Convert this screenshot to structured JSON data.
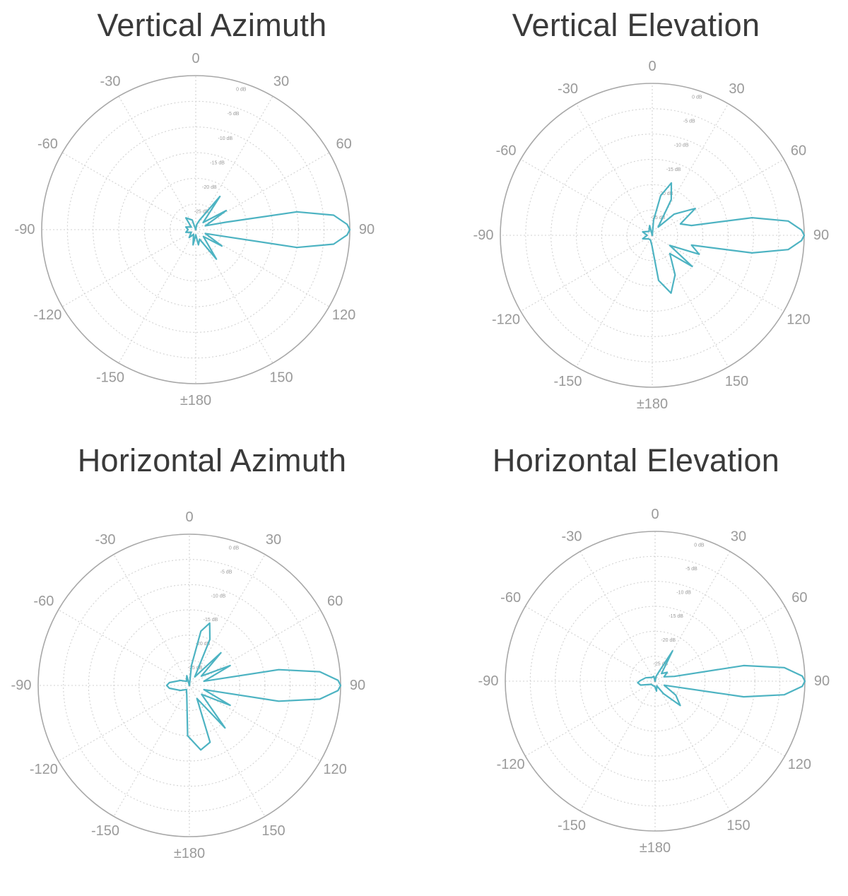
{
  "colors": {
    "pattern": "#4db3c2",
    "grid": "#d2d2d2",
    "outer_ring": "#a8a8a8",
    "label": "#9a9a9a",
    "title": "#3a3a3a"
  },
  "angle_labels": [
    "0",
    "30",
    "60",
    "90",
    "120",
    "150",
    "±180",
    "-150",
    "-120",
    "-90",
    "-60",
    "-30"
  ],
  "ring_labels": [
    "0 dB",
    "-5 dB",
    "-10 dB",
    "-15 dB",
    "-20 dB",
    "-25 dB"
  ],
  "chart_data": [
    {
      "type": "polar",
      "title": "Vertical Azimuth",
      "radial_range_db": [
        -30,
        0
      ],
      "angle_ticks_deg": [
        0,
        30,
        60,
        90,
        120,
        150,
        180,
        -150,
        -120,
        -90,
        -60,
        -30
      ],
      "grid": true,
      "points": [
        {
          "angle": 0,
          "db": -30
        },
        {
          "angle": 10,
          "db": -29
        },
        {
          "angle": 22,
          "db": -28
        },
        {
          "angle": 36,
          "db": -22
        },
        {
          "angle": 46,
          "db": -28
        },
        {
          "angle": 58,
          "db": -23
        },
        {
          "angle": 68,
          "db": -28
        },
        {
          "angle": 76,
          "db": -24
        },
        {
          "angle": 80,
          "db": -10
        },
        {
          "angle": 84,
          "db": -3
        },
        {
          "angle": 88,
          "db": -0.5
        },
        {
          "angle": 90,
          "db": 0
        },
        {
          "angle": 92,
          "db": -0.5
        },
        {
          "angle": 96,
          "db": -3
        },
        {
          "angle": 100,
          "db": -10
        },
        {
          "angle": 104,
          "db": -25
        },
        {
          "angle": 112,
          "db": -28
        },
        {
          "angle": 122,
          "db": -24
        },
        {
          "angle": 132,
          "db": -28
        },
        {
          "angle": 145,
          "db": -23
        },
        {
          "angle": 158,
          "db": -28
        },
        {
          "angle": 170,
          "db": -27
        },
        {
          "angle": 180,
          "db": -29
        },
        {
          "angle": 190,
          "db": -27
        },
        {
          "angle": 205,
          "db": -29
        },
        {
          "angle": 220,
          "db": -28
        },
        {
          "angle": 240,
          "db": -29
        },
        {
          "angle": 255,
          "db": -28
        },
        {
          "angle": 270,
          "db": -28.5
        },
        {
          "angle": 285,
          "db": -28
        },
        {
          "angle": 300,
          "db": -29
        },
        {
          "angle": 320,
          "db": -27
        },
        {
          "angle": 340,
          "db": -28
        },
        {
          "angle": 360,
          "db": -30
        }
      ]
    },
    {
      "type": "polar",
      "title": "Vertical Elevation",
      "radial_range_db": [
        -30,
        0
      ],
      "angle_ticks_deg": [
        0,
        30,
        60,
        90,
        120,
        150,
        180,
        -150,
        -120,
        -90,
        -60,
        -30
      ],
      "grid": true,
      "points": [
        {
          "angle": 0,
          "db": -30
        },
        {
          "angle": 5,
          "db": -27
        },
        {
          "angle": 12,
          "db": -22
        },
        {
          "angle": 20,
          "db": -19
        },
        {
          "angle": 28,
          "db": -22
        },
        {
          "angle": 36,
          "db": -28
        },
        {
          "angle": 46,
          "db": -24
        },
        {
          "angle": 58,
          "db": -20
        },
        {
          "angle": 68,
          "db": -24
        },
        {
          "angle": 76,
          "db": -22
        },
        {
          "angle": 80,
          "db": -10
        },
        {
          "angle": 84,
          "db": -3
        },
        {
          "angle": 88,
          "db": -0.5
        },
        {
          "angle": 90,
          "db": 0
        },
        {
          "angle": 92,
          "db": -0.5
        },
        {
          "angle": 96,
          "db": -3
        },
        {
          "angle": 100,
          "db": -10
        },
        {
          "angle": 104,
          "db": -22
        },
        {
          "angle": 112,
          "db": -20
        },
        {
          "angle": 120,
          "db": -26
        },
        {
          "angle": 128,
          "db": -20
        },
        {
          "angle": 136,
          "db": -25
        },
        {
          "angle": 150,
          "db": -21
        },
        {
          "angle": 162,
          "db": -18
        },
        {
          "angle": 172,
          "db": -21
        },
        {
          "angle": 182,
          "db": -28
        },
        {
          "angle": 200,
          "db": -29
        },
        {
          "angle": 225,
          "db": -29
        },
        {
          "angle": 250,
          "db": -28
        },
        {
          "angle": 270,
          "db": -29
        },
        {
          "angle": 290,
          "db": -28
        },
        {
          "angle": 320,
          "db": -29
        },
        {
          "angle": 345,
          "db": -28
        },
        {
          "angle": 360,
          "db": -30
        }
      ]
    },
    {
      "type": "polar",
      "title": "Horizontal Azimuth",
      "radial_range_db": [
        -30,
        0
      ],
      "angle_ticks_deg": [
        0,
        30,
        60,
        90,
        120,
        150,
        180,
        -150,
        -120,
        -90,
        -60,
        -30
      ],
      "grid": true,
      "points": [
        {
          "angle": 0,
          "db": -30
        },
        {
          "angle": 6,
          "db": -26
        },
        {
          "angle": 12,
          "db": -19
        },
        {
          "angle": 18,
          "db": -17
        },
        {
          "angle": 24,
          "db": -20
        },
        {
          "angle": 32,
          "db": -28
        },
        {
          "angle": 44,
          "db": -21
        },
        {
          "angle": 52,
          "db": -27
        },
        {
          "angle": 64,
          "db": -21
        },
        {
          "angle": 74,
          "db": -27
        },
        {
          "angle": 80,
          "db": -12
        },
        {
          "angle": 84,
          "db": -4
        },
        {
          "angle": 88,
          "db": -0.5
        },
        {
          "angle": 90,
          "db": 0
        },
        {
          "angle": 92,
          "db": -0.5
        },
        {
          "angle": 96,
          "db": -4
        },
        {
          "angle": 100,
          "db": -12
        },
        {
          "angle": 106,
          "db": -27
        },
        {
          "angle": 116,
          "db": -21
        },
        {
          "angle": 126,
          "db": -27
        },
        {
          "angle": 140,
          "db": -19
        },
        {
          "angle": 150,
          "db": -27
        },
        {
          "angle": 160,
          "db": -18
        },
        {
          "angle": 170,
          "db": -17
        },
        {
          "angle": 182,
          "db": -20
        },
        {
          "angle": 195,
          "db": -28
        },
        {
          "angle": 215,
          "db": -29
        },
        {
          "angle": 240,
          "db": -28
        },
        {
          "angle": 262,
          "db": -26
        },
        {
          "angle": 270,
          "db": -25.5
        },
        {
          "angle": 278,
          "db": -26
        },
        {
          "angle": 300,
          "db": -28
        },
        {
          "angle": 325,
          "db": -29
        },
        {
          "angle": 345,
          "db": -28
        },
        {
          "angle": 360,
          "db": -30
        }
      ]
    },
    {
      "type": "polar",
      "title": "Horizontal Elevation",
      "radial_range_db": [
        -30,
        0
      ],
      "angle_ticks_deg": [
        0,
        30,
        60,
        90,
        120,
        150,
        180,
        -150,
        -120,
        -90,
        -60,
        -30
      ],
      "grid": true,
      "points": [
        {
          "angle": 0,
          "db": -30
        },
        {
          "angle": 12,
          "db": -29
        },
        {
          "angle": 22,
          "db": -28
        },
        {
          "angle": 30,
          "db": -23
        },
        {
          "angle": 40,
          "db": -28
        },
        {
          "angle": 54,
          "db": -27
        },
        {
          "angle": 64,
          "db": -28
        },
        {
          "angle": 76,
          "db": -26
        },
        {
          "angle": 80,
          "db": -12
        },
        {
          "angle": 84,
          "db": -4
        },
        {
          "angle": 88,
          "db": -0.5
        },
        {
          "angle": 90,
          "db": 0
        },
        {
          "angle": 92,
          "db": -0.5
        },
        {
          "angle": 96,
          "db": -4
        },
        {
          "angle": 100,
          "db": -12
        },
        {
          "angle": 106,
          "db": -26
        },
        {
          "angle": 114,
          "db": -28
        },
        {
          "angle": 124,
          "db": -25
        },
        {
          "angle": 134,
          "db": -23
        },
        {
          "angle": 146,
          "db": -27
        },
        {
          "angle": 160,
          "db": -29
        },
        {
          "angle": 172,
          "db": -28
        },
        {
          "angle": 185,
          "db": -29
        },
        {
          "angle": 200,
          "db": -29
        },
        {
          "angle": 230,
          "db": -29
        },
        {
          "angle": 255,
          "db": -27
        },
        {
          "angle": 265,
          "db": -26.5
        },
        {
          "angle": 272,
          "db": -27
        },
        {
          "angle": 290,
          "db": -28
        },
        {
          "angle": 320,
          "db": -29
        },
        {
          "angle": 345,
          "db": -29
        },
        {
          "angle": 360,
          "db": -30
        }
      ]
    }
  ]
}
